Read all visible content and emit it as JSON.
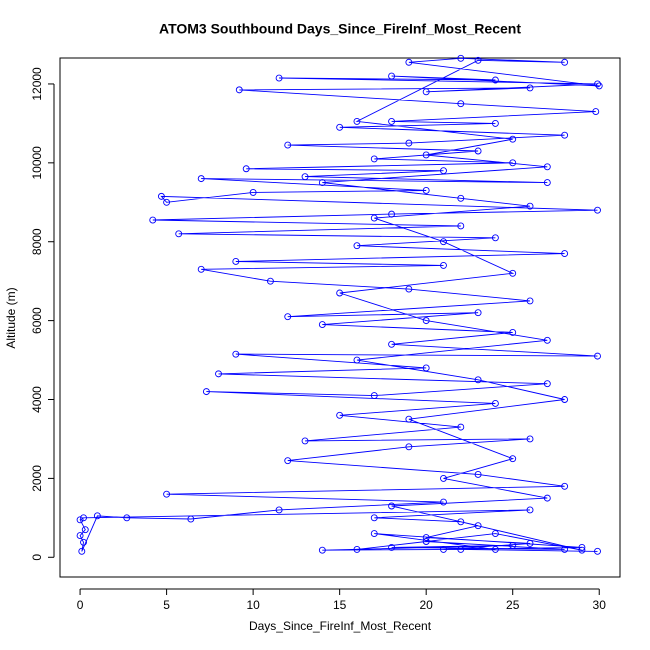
{
  "chart_data": {
    "type": "line",
    "title": "ATOM3 Southbound Days_Since_FireInf_Most_Recent",
    "x_label": "Days_Since_FireInf_Most_Recent",
    "y_label": "Altitude (m)",
    "xlim": [
      -1.16,
      31.2
    ],
    "ylim": [
      -500,
      12658
    ],
    "xticks": [
      0,
      5,
      10,
      15,
      20,
      25,
      30
    ],
    "yticks": [
      0,
      2000,
      4000,
      6000,
      8000,
      10000,
      12000
    ],
    "series": [
      {
        "color": "#0000ff",
        "x": [
          29.9,
          22,
          14,
          25,
          18,
          28,
          20,
          16,
          24,
          29,
          22,
          17,
          26,
          0.2,
          0,
          0.3,
          0,
          0.2,
          0.1,
          1,
          2.7,
          6.4,
          11.5,
          21,
          5,
          28,
          23,
          12,
          19,
          26,
          13,
          22,
          15,
          24,
          7.3,
          17,
          27,
          8,
          20,
          9,
          29.9,
          18,
          25,
          14,
          23,
          12,
          26,
          19,
          11,
          7,
          21,
          9,
          28,
          16,
          24,
          5.7,
          22,
          4.2,
          18,
          29.9,
          4.7,
          5,
          10,
          20,
          7,
          27,
          13,
          21,
          9.6,
          25,
          17,
          23,
          12,
          19,
          28,
          15,
          24,
          18,
          29.8,
          22,
          9.2,
          26,
          20,
          29.9,
          11.5,
          24,
          18,
          30,
          19,
          22,
          28,
          23,
          16,
          25,
          20,
          27,
          14,
          22,
          26,
          17,
          21,
          25,
          15,
          20,
          27,
          16,
          23,
          28,
          19,
          25,
          21,
          27,
          18,
          23,
          20,
          26,
          21,
          29,
          17,
          24
        ],
        "values": [
          150,
          200,
          180,
          300,
          250,
          200,
          400,
          200,
          600,
          180,
          900,
          1000,
          1200,
          1000,
          950,
          700,
          550,
          380,
          150,
          1050,
          1000,
          970,
          1200,
          1400,
          1600,
          1800,
          2100,
          2450,
          2800,
          3000,
          2950,
          3300,
          3600,
          3900,
          4200,
          4100,
          4400,
          4650,
          4800,
          5150,
          5100,
          5400,
          5700,
          5900,
          6200,
          6100,
          6500,
          6800,
          7000,
          7300,
          7400,
          7500,
          7700,
          7900,
          8100,
          8200,
          8400,
          8550,
          8700,
          8800,
          9150,
          9000,
          9250,
          9300,
          9600,
          9500,
          9650,
          9800,
          9850,
          10000,
          10100,
          10300,
          10450,
          10500,
          10700,
          10900,
          11000,
          11050,
          11300,
          11500,
          11850,
          11900,
          11800,
          12000,
          12150,
          12100,
          12200,
          11950,
          12550,
          12650,
          12550,
          12600,
          11050,
          10600,
          10200,
          9900,
          9500,
          9100,
          8900,
          8600,
          8000,
          7200,
          6700,
          6000,
          5500,
          5000,
          4500,
          4000,
          3500,
          2500,
          2000,
          1500,
          1300,
          800,
          500,
          350,
          200,
          250,
          600,
          200
        ]
      }
    ]
  }
}
